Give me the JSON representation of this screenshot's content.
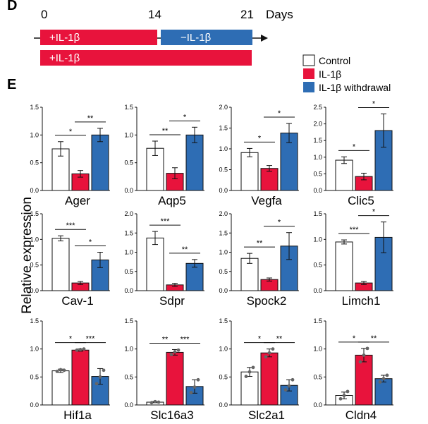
{
  "panel_labels": {
    "top": "D",
    "bottom": "E"
  },
  "timeline": {
    "tick_0": "0",
    "tick_14": "14",
    "tick_21": "21",
    "unit": "Days",
    "bar1_left": "+IL-1β",
    "bar1_right": "−IL-1β",
    "bar2": "+IL-1β"
  },
  "legend": [
    "Control",
    "IL-1β",
    "IL-1β withdrawal"
  ],
  "colors": {
    "control": "#ffffff",
    "il1b": "#e8133c",
    "withdrawal": "#2e6db4",
    "axis": "#111111"
  },
  "ylabel": "Relative expression",
  "chart_data": [
    {
      "type": "bar",
      "gene": "Ager",
      "ymax": 1.5,
      "yticks": [
        "0.0",
        "0.5",
        "1.0",
        "1.5"
      ],
      "series": [
        "Control",
        "IL-1β",
        "IL-1β withdrawal"
      ],
      "values": [
        0.75,
        0.3,
        1.0
      ],
      "errors": [
        0.13,
        0.06,
        0.12
      ],
      "sig": [
        {
          "from": 0,
          "to": 1,
          "label": "*"
        },
        {
          "from": 1,
          "to": 2,
          "label": "**"
        }
      ]
    },
    {
      "type": "bar",
      "gene": "Aqp5",
      "ymax": 1.5,
      "yticks": [
        "0.0",
        "0.5",
        "1.0",
        "1.5"
      ],
      "series": [
        "Control",
        "IL-1β",
        "IL-1β withdrawal"
      ],
      "values": [
        0.76,
        0.31,
        1.0
      ],
      "errors": [
        0.13,
        0.1,
        0.14
      ],
      "sig": [
        {
          "from": 0,
          "to": 1,
          "label": "**"
        },
        {
          "from": 1,
          "to": 2,
          "label": "*"
        }
      ]
    },
    {
      "type": "bar",
      "gene": "Vegfa",
      "ymax": 2.0,
      "yticks": [
        "0.0",
        "0.5",
        "1.0",
        "1.5",
        "2.0"
      ],
      "series": [
        "Control",
        "IL-1β",
        "IL-1β withdrawal"
      ],
      "values": [
        0.91,
        0.53,
        1.38
      ],
      "errors": [
        0.1,
        0.07,
        0.23
      ],
      "sig": [
        {
          "from": 0,
          "to": 1,
          "label": "*"
        },
        {
          "from": 1,
          "to": 2,
          "label": "*"
        }
      ]
    },
    {
      "type": "bar",
      "gene": "Clic5",
      "ymax": 2.5,
      "yticks": [
        "0.0",
        "0.5",
        "1.0",
        "1.5",
        "2.0",
        "2.5"
      ],
      "series": [
        "Control",
        "IL-1β",
        "IL-1β withdrawal"
      ],
      "values": [
        0.91,
        0.42,
        1.8
      ],
      "errors": [
        0.1,
        0.1,
        0.5
      ],
      "sig": [
        {
          "from": 0,
          "to": 1,
          "label": "*"
        },
        {
          "from": 1,
          "to": 2,
          "label": "*"
        }
      ]
    },
    {
      "type": "bar",
      "gene": "Cav-1",
      "ymax": 1.5,
      "yticks": [
        "0.0",
        "0.5",
        "1.0",
        "1.5"
      ],
      "series": [
        "Control",
        "IL-1β",
        "IL-1β withdrawal"
      ],
      "values": [
        1.02,
        0.15,
        0.6
      ],
      "errors": [
        0.05,
        0.03,
        0.15
      ],
      "sig": [
        {
          "from": 0,
          "to": 1,
          "label": "***"
        },
        {
          "from": 1,
          "to": 2,
          "label": "*"
        }
      ]
    },
    {
      "type": "bar",
      "gene": "Sdpr",
      "ymax": 2.0,
      "yticks": [
        "0.0",
        "0.5",
        "1.0",
        "1.5",
        "2.0"
      ],
      "series": [
        "Control",
        "IL-1β",
        "IL-1β withdrawal"
      ],
      "values": [
        1.37,
        0.15,
        0.71
      ],
      "errors": [
        0.17,
        0.04,
        0.1
      ],
      "sig": [
        {
          "from": 0,
          "to": 1,
          "label": "***"
        },
        {
          "from": 1,
          "to": 2,
          "label": "**"
        }
      ]
    },
    {
      "type": "bar",
      "gene": "Spock2",
      "ymax": 2.0,
      "yticks": [
        "0.0",
        "0.5",
        "1.0",
        "1.5",
        "2.0"
      ],
      "series": [
        "Control",
        "IL-1β",
        "IL-1β withdrawal"
      ],
      "values": [
        0.84,
        0.29,
        1.16
      ],
      "errors": [
        0.13,
        0.04,
        0.35
      ],
      "sig": [
        {
          "from": 0,
          "to": 1,
          "label": "**"
        },
        {
          "from": 1,
          "to": 2,
          "label": "*"
        }
      ]
    },
    {
      "type": "bar",
      "gene": "Limch1",
      "ymax": 1.5,
      "yticks": [
        "0.0",
        "0.5",
        "1.0",
        "1.5"
      ],
      "series": [
        "Control",
        "IL-1β",
        "IL-1β withdrawal"
      ],
      "values": [
        0.95,
        0.15,
        1.04
      ],
      "errors": [
        0.04,
        0.03,
        0.3
      ],
      "sig": [
        {
          "from": 0,
          "to": 1,
          "label": "***"
        },
        {
          "from": 1,
          "to": 2,
          "label": "*"
        }
      ]
    },
    {
      "type": "bar",
      "gene": "Hif1a",
      "ymax": 1.5,
      "yticks": [
        "0.0",
        "0.5",
        "1.0",
        "1.5"
      ],
      "series": [
        "Control",
        "IL-1β",
        "IL-1β withdrawal"
      ],
      "values": [
        0.61,
        0.98,
        0.51
      ],
      "errors": [
        0.03,
        0.02,
        0.14
      ],
      "points": [
        [
          0.6,
          0.63,
          0.62
        ],
        [
          0.98,
          0.99,
          1.0
        ],
        [
          0.38,
          0.5,
          0.62
        ]
      ],
      "sig": [
        {
          "from": 0,
          "to": 1,
          "label": "*"
        },
        {
          "from": 1,
          "to": 2,
          "label": "***"
        }
      ]
    },
    {
      "type": "bar",
      "gene": "Slc16a3",
      "ymax": 1.5,
      "yticks": [
        "0.0",
        "0.5",
        "1.0",
        "1.5"
      ],
      "series": [
        "Control",
        "IL-1β",
        "IL-1β withdrawal"
      ],
      "values": [
        0.05,
        0.94,
        0.33
      ],
      "errors": [
        0.01,
        0.05,
        0.12
      ],
      "points": [
        [
          0.04,
          0.06,
          0.05
        ],
        [
          0.9,
          0.95,
          0.98
        ],
        [
          0.22,
          0.32,
          0.45
        ]
      ],
      "sig": [
        {
          "from": 0,
          "to": 1,
          "label": "**"
        },
        {
          "from": 1,
          "to": 2,
          "label": "***"
        }
      ]
    },
    {
      "type": "bar",
      "gene": "Slc2a1",
      "ymax": 1.5,
      "yticks": [
        "0.0",
        "0.5",
        "1.0",
        "1.5"
      ],
      "series": [
        "Control",
        "IL-1β",
        "IL-1β withdrawal"
      ],
      "values": [
        0.59,
        0.93,
        0.35
      ],
      "errors": [
        0.08,
        0.07,
        0.1
      ],
      "points": [
        [
          0.51,
          0.59,
          0.67
        ],
        [
          0.86,
          0.93,
          1.0
        ],
        [
          0.27,
          0.34,
          0.45
        ]
      ],
      "sig": [
        {
          "from": 0,
          "to": 1,
          "label": "*"
        },
        {
          "from": 1,
          "to": 2,
          "label": "**"
        }
      ]
    },
    {
      "type": "bar",
      "gene": "Cldn4",
      "ymax": 1.5,
      "yticks": [
        "0.0",
        "0.5",
        "1.0",
        "1.5"
      ],
      "series": [
        "Control",
        "IL-1β",
        "IL-1β withdrawal"
      ],
      "values": [
        0.17,
        0.89,
        0.47
      ],
      "errors": [
        0.06,
        0.12,
        0.06
      ],
      "points": [
        [
          0.11,
          0.17,
          0.24
        ],
        [
          0.77,
          0.89,
          1.01
        ],
        [
          0.41,
          0.47,
          0.53
        ]
      ],
      "sig": [
        {
          "from": 0,
          "to": 1,
          "label": "*"
        },
        {
          "from": 1,
          "to": 2,
          "label": "**"
        }
      ]
    }
  ]
}
